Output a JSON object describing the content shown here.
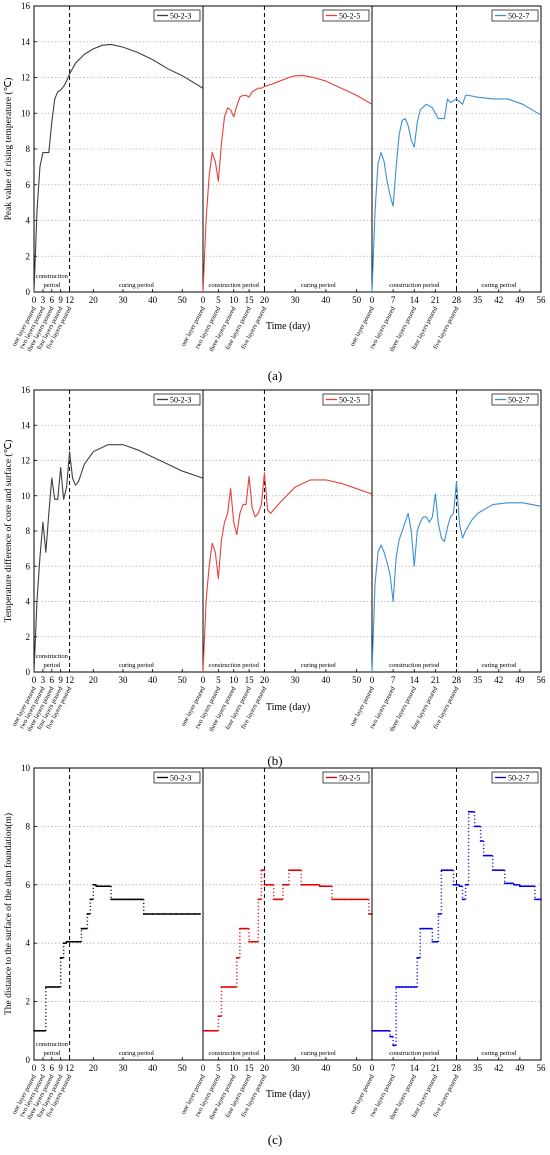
{
  "figure_labels": [
    "(a)",
    "(b)",
    "(c)"
  ],
  "chart_data": [
    {
      "type": "line",
      "panel_label": "(a)",
      "ylabel": "Peak value of rising temperature (℃)",
      "xlabel": "Time (day)",
      "ylim": [
        0,
        16
      ],
      "yticks": [
        "0",
        "2",
        "4",
        "6",
        "8",
        "10",
        "12",
        "14",
        "16"
      ],
      "grid": "horizontal dotted",
      "subplots": [
        {
          "name": "50-2-3",
          "color": "#404040",
          "xlim": [
            0,
            57
          ],
          "xticks": [
            "0",
            "3",
            "6",
            "9",
            "12",
            "20",
            "30",
            "40",
            "50"
          ],
          "divider_x": 12,
          "period_labels": [
            "construction",
            "period",
            "curing period"
          ],
          "pour_labels": [
            "one layer poured",
            "two layers poured",
            "three layers poured",
            "four layers poured",
            "five layers poured"
          ],
          "pour_x": [
            0,
            3,
            6,
            9,
            12
          ],
          "x": [
            0,
            1,
            2,
            3,
            4,
            5,
            6,
            7,
            8,
            9,
            10,
            11,
            12,
            14,
            17,
            20,
            23,
            26,
            30,
            35,
            40,
            45,
            50,
            57
          ],
          "y": [
            0,
            4.5,
            7.0,
            7.8,
            7.8,
            7.8,
            9.5,
            10.8,
            11.2,
            11.3,
            11.5,
            11.8,
            12.2,
            12.8,
            13.3,
            13.6,
            13.8,
            13.85,
            13.7,
            13.4,
            13.0,
            12.5,
            12.1,
            11.4
          ]
        },
        {
          "name": "50-2-5",
          "color": "#e8403a",
          "xlim": [
            0,
            55
          ],
          "xticks": [
            "0",
            "5",
            "10",
            "15",
            "20",
            "30",
            "40",
            "50"
          ],
          "divider_x": 20,
          "period_labels": [
            "construction period",
            "curing period"
          ],
          "pour_labels": [
            "one layer poured",
            "two layers poured",
            "three layers poured",
            "four layers poured",
            "five layers poured"
          ],
          "pour_x": [
            0,
            5,
            10,
            15,
            20
          ],
          "x": [
            0,
            1,
            2,
            3,
            4,
            5,
            6,
            7,
            8,
            9,
            10,
            11,
            12,
            13,
            14,
            15,
            16,
            17,
            18,
            19,
            20,
            22,
            25,
            28,
            30,
            33,
            36,
            40,
            45,
            50,
            55
          ],
          "y": [
            0,
            4.0,
            6.5,
            7.8,
            7.3,
            6.2,
            8.3,
            9.8,
            10.3,
            10.2,
            9.8,
            10.4,
            10.9,
            11.0,
            11.0,
            10.9,
            11.2,
            11.3,
            11.4,
            11.4,
            11.5,
            11.6,
            11.8,
            12.0,
            12.1,
            12.1,
            12.0,
            11.8,
            11.4,
            11.0,
            10.5
          ]
        },
        {
          "name": "50-2-7",
          "color": "#3d8fd6",
          "xlim": [
            0,
            56
          ],
          "xticks": [
            "0",
            "7",
            "14",
            "21",
            "28",
            "35",
            "42",
            "49",
            "56"
          ],
          "divider_x": 28,
          "period_labels": [
            "construction period",
            "curing period"
          ],
          "pour_labels": [
            "one layer poured",
            "two layers poured",
            "three layers poured",
            "four layers poured",
            "five layers poured"
          ],
          "pour_x": [
            0,
            7,
            14,
            21,
            28
          ],
          "x": [
            0,
            1,
            2,
            3,
            4,
            5,
            6,
            7,
            8,
            9,
            10,
            11,
            12,
            13,
            14,
            15,
            16,
            18,
            20,
            21,
            22,
            24,
            25,
            26,
            28,
            30,
            31,
            32,
            35,
            40,
            45,
            50,
            56
          ],
          "y": [
            0,
            4.5,
            7.2,
            7.8,
            7.3,
            6.2,
            5.4,
            4.8,
            7.0,
            8.8,
            9.6,
            9.7,
            9.3,
            8.5,
            8.1,
            9.5,
            10.2,
            10.5,
            10.3,
            10.0,
            9.7,
            9.7,
            10.8,
            10.6,
            10.8,
            10.5,
            11.0,
            11.0,
            10.9,
            10.8,
            10.8,
            10.5,
            9.9
          ]
        }
      ]
    },
    {
      "type": "line",
      "panel_label": "(b)",
      "ylabel": "Temperature difference of core and surface (℃)",
      "xlabel": "Time (day)",
      "ylim": [
        0,
        16
      ],
      "yticks": [
        "0",
        "2",
        "4",
        "6",
        "8",
        "10",
        "12",
        "14",
        "16"
      ],
      "grid": "horizontal dotted",
      "subplots": [
        {
          "name": "50-2-3",
          "color": "#404040",
          "xlim": [
            0,
            57
          ],
          "xticks": [
            "0",
            "3",
            "6",
            "9",
            "12",
            "20",
            "30",
            "40",
            "50"
          ],
          "divider_x": 12,
          "period_labels": [
            "construction",
            "period",
            "curing period"
          ],
          "pour_labels": [
            "one layer poured",
            "two layers poured",
            "three layers poured",
            "four layers poured",
            "five layers poured"
          ],
          "pour_x": [
            0,
            3,
            6,
            9,
            12
          ],
          "x": [
            0,
            1,
            2,
            3,
            4,
            5,
            6,
            7,
            8,
            9,
            10,
            11,
            12,
            13,
            14,
            15,
            17,
            20,
            25,
            30,
            35,
            40,
            45,
            50,
            57
          ],
          "y": [
            0,
            4.0,
            6.5,
            8.5,
            6.8,
            9.0,
            11.0,
            9.8,
            9.8,
            11.6,
            9.8,
            10.5,
            12.5,
            11.0,
            10.6,
            10.8,
            11.8,
            12.5,
            12.9,
            12.9,
            12.6,
            12.2,
            11.8,
            11.4,
            11.0
          ]
        },
        {
          "name": "50-2-5",
          "color": "#e8403a",
          "xlim": [
            0,
            55
          ],
          "xticks": [
            "0",
            "5",
            "10",
            "15",
            "20",
            "30",
            "40",
            "50"
          ],
          "divider_x": 20,
          "period_labels": [
            "construction period",
            "curing period"
          ],
          "pour_labels": [
            "one layer poured",
            "two layers poured",
            "three layers poured",
            "four layers poured",
            "five layers poured"
          ],
          "pour_x": [
            0,
            5,
            10,
            15,
            20
          ],
          "x": [
            0,
            1,
            2,
            3,
            4,
            5,
            6,
            7,
            8,
            9,
            10,
            11,
            12,
            13,
            14,
            15,
            16,
            17,
            18,
            19,
            20,
            21,
            22,
            25,
            30,
            35,
            40,
            45,
            50,
            55
          ],
          "y": [
            0,
            4.0,
            6.0,
            7.3,
            6.8,
            5.3,
            7.5,
            8.5,
            9.0,
            10.4,
            8.5,
            7.8,
            9.0,
            9.5,
            9.5,
            11.1,
            9.3,
            8.8,
            9.0,
            9.5,
            11.3,
            9.2,
            9.0,
            9.6,
            10.5,
            10.9,
            10.9,
            10.7,
            10.4,
            10.1
          ]
        },
        {
          "name": "50-2-7",
          "color": "#3d8fd6",
          "xlim": [
            0,
            56
          ],
          "xticks": [
            "0",
            "7",
            "14",
            "21",
            "28",
            "35",
            "42",
            "49",
            "56"
          ],
          "divider_x": 28,
          "period_labels": [
            "construction period",
            "curing period"
          ],
          "pour_labels": [
            "one layer poured",
            "two layers poured",
            "three layers poured",
            "four layers poured",
            "five layers poured"
          ],
          "pour_x": [
            0,
            7,
            14,
            21,
            28
          ],
          "x": [
            0,
            1,
            2,
            3,
            4,
            5,
            6,
            7,
            8,
            9,
            10,
            11,
            12,
            13,
            14,
            15,
            16,
            17,
            18,
            19,
            20,
            21,
            22,
            23,
            24,
            25,
            26,
            27,
            28,
            29,
            30,
            31,
            33,
            35,
            40,
            45,
            50,
            56
          ],
          "y": [
            0,
            5.0,
            6.8,
            7.2,
            6.8,
            6.2,
            5.5,
            4.0,
            6.5,
            7.5,
            8.0,
            8.5,
            9.0,
            8.0,
            6.0,
            8.0,
            8.5,
            8.8,
            8.8,
            8.5,
            8.8,
            10.1,
            8.4,
            7.6,
            7.4,
            8.2,
            8.8,
            9.0,
            10.8,
            8.4,
            7.6,
            8.0,
            8.6,
            9.0,
            9.5,
            9.6,
            9.6,
            9.4
          ]
        }
      ]
    },
    {
      "type": "scatter",
      "panel_label": "(c)",
      "ylabel": "The distance to the surface of the dam foundation(m)",
      "xlabel": "Time (day)",
      "ylim": [
        0,
        10
      ],
      "yticks": [
        "0",
        "2",
        "4",
        "6",
        "8",
        "10"
      ],
      "grid": "horizontal dotted",
      "subplots": [
        {
          "name": "50-2-3",
          "color": "#000000",
          "xlim": [
            0,
            57
          ],
          "xticks": [
            "0",
            "3",
            "6",
            "9",
            "12",
            "20",
            "30",
            "40",
            "50"
          ],
          "divider_x": 12,
          "period_labels": [
            "construction",
            "period",
            "curing period"
          ],
          "pour_labels": [
            "one layer poured",
            "two layers poured",
            "three layers poured",
            "four layers poured",
            "five layers poured"
          ],
          "pour_x": [
            0,
            3,
            6,
            9,
            12
          ],
          "x": [
            0,
            1,
            2,
            3,
            4,
            5,
            6,
            7,
            8,
            9,
            10,
            11,
            12,
            13,
            14,
            15,
            16,
            17,
            18,
            19,
            20,
            21,
            22,
            23,
            24,
            25,
            26,
            27,
            28,
            29,
            30,
            31,
            32,
            33,
            34,
            35,
            36,
            37,
            38,
            40,
            42,
            44,
            46,
            48,
            50,
            52,
            54,
            56
          ],
          "y": [
            1.0,
            1.0,
            1.0,
            1.0,
            2.5,
            2.5,
            2.5,
            2.5,
            2.5,
            3.5,
            4.0,
            4.05,
            4.05,
            4.05,
            4.05,
            4.05,
            4.5,
            4.5,
            5.0,
            5.5,
            6.0,
            5.95,
            5.95,
            5.95,
            5.95,
            5.95,
            5.5,
            5.5,
            5.5,
            5.5,
            5.5,
            5.5,
            5.5,
            5.5,
            5.5,
            5.5,
            5.5,
            5.0,
            5.0,
            5.0,
            5.0,
            5.0,
            5.0,
            5.0,
            5.0,
            5.0,
            5.0,
            5.0
          ]
        },
        {
          "name": "50-2-5",
          "color": "#e00000",
          "xlim": [
            0,
            55
          ],
          "xticks": [
            "0",
            "5",
            "10",
            "15",
            "20",
            "30",
            "40",
            "50"
          ],
          "divider_x": 20,
          "period_labels": [
            "construction period",
            "curing period"
          ],
          "pour_labels": [
            "one layer poured",
            "two layers poured",
            "three layers poured",
            "four layers poured",
            "five layers poured"
          ],
          "pour_x": [
            0,
            5,
            10,
            15,
            20
          ],
          "x": [
            0,
            1,
            2,
            3,
            4,
            5,
            6,
            7,
            8,
            9,
            10,
            11,
            12,
            13,
            14,
            15,
            16,
            17,
            18,
            19,
            20,
            21,
            22,
            23,
            24,
            25,
            26,
            27,
            28,
            29,
            30,
            31,
            32,
            33,
            34,
            35,
            36,
            37,
            38,
            39,
            40,
            42,
            44,
            46,
            48,
            50,
            52,
            54,
            55
          ],
          "y": [
            1.0,
            1.0,
            1.0,
            1.0,
            1.0,
            1.5,
            2.5,
            2.5,
            2.5,
            2.5,
            2.5,
            3.5,
            4.5,
            4.5,
            4.5,
            4.05,
            4.05,
            4.05,
            5.5,
            6.5,
            6.0,
            6.0,
            6.0,
            5.5,
            5.5,
            5.5,
            6.0,
            6.0,
            6.5,
            6.5,
            6.5,
            6.5,
            6.0,
            6.0,
            6.0,
            6.0,
            6.0,
            6.0,
            5.95,
            5.95,
            5.95,
            5.5,
            5.5,
            5.5,
            5.5,
            5.5,
            5.5,
            5.0,
            5.0
          ]
        },
        {
          "name": "50-2-7",
          "color": "#0000e6",
          "xlim": [
            0,
            56
          ],
          "xticks": [
            "0",
            "7",
            "14",
            "21",
            "28",
            "35",
            "42",
            "49",
            "56"
          ],
          "divider_x": 28,
          "period_labels": [
            "construction period",
            "curing period"
          ],
          "pour_labels": [
            "one layer poured",
            "two layers poured",
            "three layers poured",
            "four layers poured",
            "five layers poured"
          ],
          "pour_x": [
            0,
            7,
            14,
            21,
            28
          ],
          "x": [
            0,
            1,
            2,
            3,
            4,
            5,
            6,
            7,
            8,
            9,
            10,
            11,
            12,
            13,
            14,
            15,
            16,
            17,
            18,
            19,
            20,
            21,
            22,
            23,
            24,
            25,
            26,
            27,
            28,
            29,
            30,
            31,
            32,
            33,
            34,
            35,
            36,
            37,
            38,
            39,
            40,
            41,
            42,
            43,
            44,
            45,
            46,
            47,
            48,
            49,
            50,
            51,
            52,
            53,
            54,
            55,
            56
          ],
          "y": [
            1.0,
            1.0,
            1.0,
            1.0,
            1.0,
            1.0,
            0.8,
            0.5,
            2.5,
            2.5,
            2.5,
            2.5,
            2.5,
            2.5,
            2.5,
            3.5,
            4.5,
            4.5,
            4.5,
            4.5,
            4.05,
            4.05,
            5.0,
            6.5,
            6.5,
            6.5,
            6.5,
            6.0,
            6.0,
            5.95,
            5.5,
            6.0,
            8.5,
            8.5,
            8.0,
            8.0,
            7.5,
            7.0,
            7.0,
            7.0,
            6.5,
            6.5,
            6.5,
            6.5,
            6.05,
            6.05,
            6.05,
            6.0,
            6.0,
            5.95,
            5.95,
            5.95,
            5.95,
            5.95,
            5.5,
            5.5,
            5.5
          ]
        }
      ]
    }
  ]
}
